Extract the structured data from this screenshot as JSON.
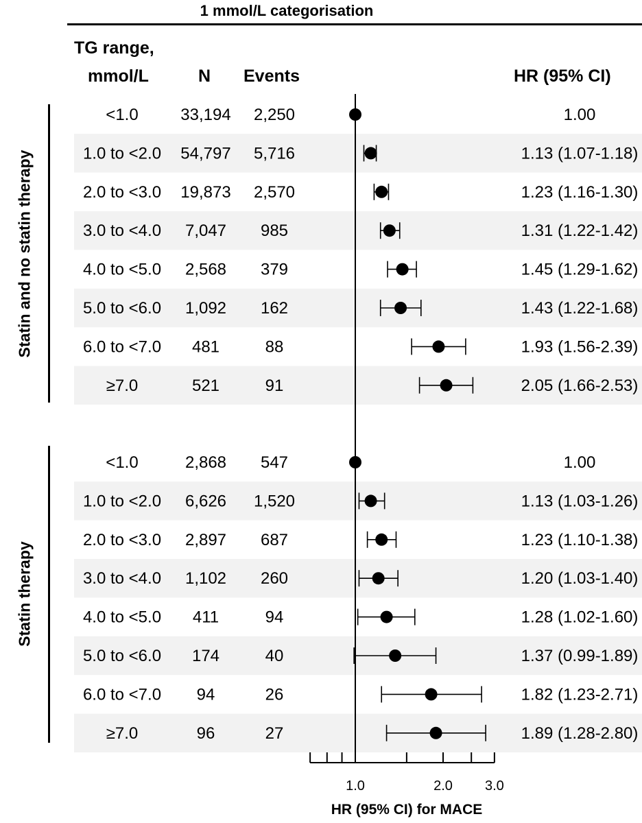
{
  "section_title": "1 mmol/L categorisation",
  "columns": {
    "tg_range_line1": "TG range,",
    "tg_range_line2": "mmol/L",
    "n": "N",
    "events": "Events",
    "hr": "HR (95% CI)"
  },
  "groups": [
    {
      "label": "Statin and no statin therapy"
    },
    {
      "label": "Statin therapy"
    }
  ],
  "chart_data": {
    "type": "forest",
    "title": "1 mmol/L categorisation",
    "xlabel": "HR (95% CI) for MACE",
    "x_scale": "log",
    "x_ticks": [
      0.7,
      0.8,
      0.9,
      1.0,
      1.5,
      2.0,
      2.5,
      3.0
    ],
    "x_tick_labels": [
      "1.0",
      "2.0",
      "3.0"
    ],
    "x_tick_label_values": [
      1.0,
      2.0,
      3.0
    ],
    "reference_line": 1.0,
    "groups": [
      {
        "name": "Statin and no statin therapy",
        "rows": [
          {
            "range": "<1.0",
            "n": "33,194",
            "events": "2,250",
            "hr": 1.0,
            "lo": null,
            "hi": null,
            "hr_text": "1.00"
          },
          {
            "range": "1.0 to <2.0",
            "n": "54,797",
            "events": "5,716",
            "hr": 1.13,
            "lo": 1.07,
            "hi": 1.18,
            "hr_text": "1.13 (1.07-1.18)"
          },
          {
            "range": "2.0 to <3.0",
            "n": "19,873",
            "events": "2,570",
            "hr": 1.23,
            "lo": 1.16,
            "hi": 1.3,
            "hr_text": "1.23 (1.16-1.30)"
          },
          {
            "range": "3.0 to <4.0",
            "n": "7,047",
            "events": "985",
            "hr": 1.31,
            "lo": 1.22,
            "hi": 1.42,
            "hr_text": "1.31 (1.22-1.42)"
          },
          {
            "range": "4.0 to <5.0",
            "n": "2,568",
            "events": "379",
            "hr": 1.45,
            "lo": 1.29,
            "hi": 1.62,
            "hr_text": "1.45 (1.29-1.62)"
          },
          {
            "range": "5.0 to <6.0",
            "n": "1,092",
            "events": "162",
            "hr": 1.43,
            "lo": 1.22,
            "hi": 1.68,
            "hr_text": "1.43 (1.22-1.68)"
          },
          {
            "range": "6.0 to <7.0",
            "n": "481",
            "events": "88",
            "hr": 1.93,
            "lo": 1.56,
            "hi": 2.39,
            "hr_text": "1.93 (1.56-2.39)"
          },
          {
            "range": "≥7.0",
            "n": "521",
            "events": "91",
            "hr": 2.05,
            "lo": 1.66,
            "hi": 2.53,
            "hr_text": "2.05 (1.66-2.53)"
          }
        ]
      },
      {
        "name": "Statin therapy",
        "rows": [
          {
            "range": "<1.0",
            "n": "2,868",
            "events": "547",
            "hr": 1.0,
            "lo": null,
            "hi": null,
            "hr_text": "1.00"
          },
          {
            "range": "1.0 to <2.0",
            "n": "6,626",
            "events": "1,520",
            "hr": 1.13,
            "lo": 1.03,
            "hi": 1.26,
            "hr_text": "1.13 (1.03-1.26)"
          },
          {
            "range": "2.0 to <3.0",
            "n": "2,897",
            "events": "687",
            "hr": 1.23,
            "lo": 1.1,
            "hi": 1.38,
            "hr_text": "1.23 (1.10-1.38)"
          },
          {
            "range": "3.0 to <4.0",
            "n": "1,102",
            "events": "260",
            "hr": 1.2,
            "lo": 1.03,
            "hi": 1.4,
            "hr_text": "1.20 (1.03-1.40)"
          },
          {
            "range": "4.0 to <5.0",
            "n": "411",
            "events": "94",
            "hr": 1.28,
            "lo": 1.02,
            "hi": 1.6,
            "hr_text": "1.28 (1.02-1.60)"
          },
          {
            "range": "5.0 to <6.0",
            "n": "174",
            "events": "40",
            "hr": 1.37,
            "lo": 0.99,
            "hi": 1.89,
            "hr_text": "1.37 (0.99-1.89)"
          },
          {
            "range": "6.0 to <7.0",
            "n": "94",
            "events": "26",
            "hr": 1.82,
            "lo": 1.23,
            "hi": 2.71,
            "hr_text": "1.82 (1.23-2.71)"
          },
          {
            "range": "≥7.0",
            "n": "96",
            "events": "27",
            "hr": 1.89,
            "lo": 1.28,
            "hi": 2.8,
            "hr_text": "1.89 (1.28-2.80)"
          }
        ]
      }
    ],
    "colors": {
      "stripe": "#f2f2f2",
      "marker": "#000000"
    }
  }
}
